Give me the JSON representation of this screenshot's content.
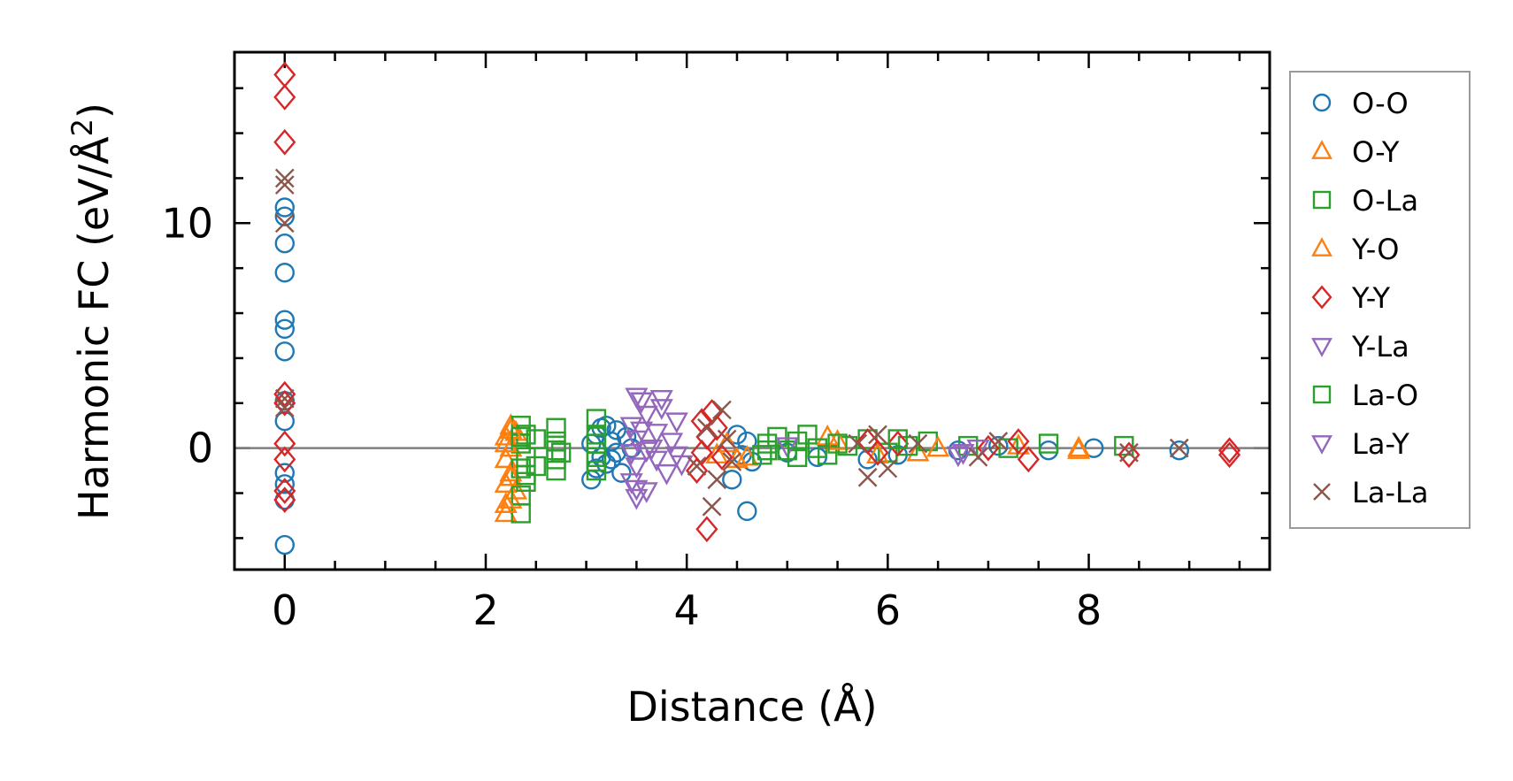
{
  "chart_data": {
    "type": "scatter",
    "title": "",
    "xlabel": "Distance (Å)",
    "ylabel_main": "Harmonic FC (eV/Å",
    "ylabel_sup": "2",
    "ylabel_close": ")",
    "xlim": [
      -0.5,
      9.8
    ],
    "ylim": [
      -5.4,
      17.6
    ],
    "xticks": [
      0,
      2,
      4,
      6,
      8
    ],
    "xtick_labels": [
      "0",
      "2",
      "4",
      "6",
      "8"
    ],
    "yticks": [
      0,
      10
    ],
    "ytick_labels": [
      "0",
      "10"
    ],
    "x_minor_step": 0.5,
    "y_minor_step": 2,
    "zero_line": true,
    "legend_position": "outside-right",
    "series": [
      {
        "name": "O-O",
        "marker": "circle",
        "color": "#1f77b4",
        "points": [
          [
            0,
            -4.3
          ],
          [
            0,
            -2.3
          ],
          [
            0,
            -1.6
          ],
          [
            0,
            -1.1
          ],
          [
            0,
            1.2
          ],
          [
            0,
            2.1
          ],
          [
            0,
            4.3
          ],
          [
            0,
            5.3
          ],
          [
            0,
            5.7
          ],
          [
            0,
            7.8
          ],
          [
            0,
            9.1
          ],
          [
            0,
            10.3
          ],
          [
            0,
            10.7
          ],
          [
            3.05,
            -1.4
          ],
          [
            3.1,
            -0.9
          ],
          [
            3.15,
            -0.4
          ],
          [
            3.05,
            0.2
          ],
          [
            3.1,
            0.6
          ],
          [
            3.15,
            0.9
          ],
          [
            3.2,
            -0.7
          ],
          [
            3.25,
            0.3
          ],
          [
            3.3,
            -0.2
          ],
          [
            3.3,
            0.8
          ],
          [
            3.35,
            -1.1
          ],
          [
            3.4,
            0.5
          ],
          [
            3.45,
            0
          ],
          [
            3.2,
            1.0
          ],
          [
            3.25,
            -0.5
          ],
          [
            4.45,
            -1.4
          ],
          [
            4.5,
            0.6
          ],
          [
            4.55,
            -0.3
          ],
          [
            4.6,
            -2.8
          ],
          [
            4.6,
            0.3
          ],
          [
            4.65,
            -0.6
          ],
          [
            5.0,
            -0.2
          ],
          [
            5.3,
            -0.4
          ],
          [
            5.8,
            -0.5
          ],
          [
            6.1,
            -0.3
          ],
          [
            6.7,
            -0.1
          ],
          [
            7.1,
            0.1
          ],
          [
            7.6,
            -0.1
          ],
          [
            8.05,
            0
          ],
          [
            8.9,
            -0.1
          ]
        ]
      },
      {
        "name": "O-Y",
        "marker": "triangle-up",
        "color": "#ff7f0e",
        "points": [
          [
            2.2,
            -2.9
          ],
          [
            2.25,
            -2.3
          ],
          [
            2.2,
            -1.6
          ],
          [
            2.25,
            -1.1
          ],
          [
            2.2,
            -0.5
          ],
          [
            2.25,
            0
          ],
          [
            2.2,
            0.5
          ],
          [
            2.25,
            1.0
          ],
          [
            2.3,
            -1.9
          ],
          [
            2.3,
            0.7
          ],
          [
            4.3,
            -0.3
          ],
          [
            4.4,
            0.2
          ],
          [
            4.6,
            -0.4
          ],
          [
            5.4,
            0.5
          ],
          [
            6.3,
            -0.2
          ],
          [
            7.3,
            0.1
          ],
          [
            7.9,
            0
          ]
        ]
      },
      {
        "name": "O-La",
        "marker": "square",
        "color": "#2ca02c",
        "points": [
          [
            2.35,
            -2.9
          ],
          [
            2.35,
            -2.1
          ],
          [
            2.4,
            -1.5
          ],
          [
            2.35,
            -0.9
          ],
          [
            2.4,
            -0.4
          ],
          [
            2.35,
            0.2
          ],
          [
            2.4,
            0.6
          ],
          [
            2.35,
            1.0
          ],
          [
            2.5,
            -0.8
          ],
          [
            2.5,
            0.4
          ],
          [
            2.7,
            -1.0
          ],
          [
            2.7,
            -0.5
          ],
          [
            2.7,
            0.3
          ],
          [
            2.7,
            0.9
          ],
          [
            2.75,
            -0.2
          ],
          [
            3.1,
            -1.0
          ],
          [
            3.1,
            -0.4
          ],
          [
            3.1,
            0.2
          ],
          [
            3.1,
            0.6
          ],
          [
            3.1,
            1.3
          ],
          [
            4.75,
            -0.3
          ],
          [
            4.8,
            0.2
          ],
          [
            4.9,
            0.5
          ],
          [
            5.0,
            -0.1
          ],
          [
            5.1,
            0.3
          ],
          [
            5.2,
            0.6
          ],
          [
            5.3,
            0
          ],
          [
            5.4,
            -0.3
          ],
          [
            5.6,
            0.1
          ],
          [
            5.8,
            0.4
          ],
          [
            6.0,
            -0.2
          ],
          [
            6.2,
            0.1
          ],
          [
            6.4,
            0.3
          ],
          [
            6.8,
            0.1
          ],
          [
            7.2,
            0
          ],
          [
            7.6,
            0.2
          ],
          [
            8.35,
            0.1
          ]
        ]
      },
      {
        "name": "Y-O",
        "marker": "triangle-up",
        "color": "#ff7f0e",
        "points": [
          [
            2.2,
            -2.5
          ],
          [
            2.25,
            -1.3
          ],
          [
            2.2,
            0.2
          ],
          [
            2.25,
            0.8
          ],
          [
            4.5,
            -0.5
          ],
          [
            5.5,
            0.3
          ],
          [
            5.9,
            -0.3
          ],
          [
            6.5,
            0
          ],
          [
            7.9,
            -0.1
          ]
        ]
      },
      {
        "name": "Y-Y",
        "marker": "diamond",
        "color": "#d62728",
        "points": [
          [
            0,
            16.6
          ],
          [
            0,
            15.6
          ],
          [
            0,
            13.6
          ],
          [
            0,
            2.4
          ],
          [
            0,
            2.0
          ],
          [
            0,
            0.2
          ],
          [
            0,
            -0.5
          ],
          [
            0,
            -1.9
          ],
          [
            0,
            -2.3
          ],
          [
            4.1,
            -1.0
          ],
          [
            4.15,
            -0.2
          ],
          [
            4.2,
            0.5
          ],
          [
            4.15,
            1.2
          ],
          [
            4.25,
            1.6
          ],
          [
            4.2,
            -3.6
          ],
          [
            4.3,
            0.9
          ],
          [
            4.35,
            -0.4
          ],
          [
            5.8,
            0.3
          ],
          [
            5.9,
            -0.2
          ],
          [
            6.1,
            0.2
          ],
          [
            7.0,
            0
          ],
          [
            7.4,
            -0.5
          ],
          [
            7.3,
            0.3
          ],
          [
            8.4,
            -0.3
          ],
          [
            9.4,
            -0.3
          ],
          [
            9.4,
            -0.1
          ]
        ]
      },
      {
        "name": "Y-La",
        "marker": "triangle-down",
        "color": "#9467bd",
        "points": [
          [
            3.5,
            -2.2
          ],
          [
            3.45,
            -1.5
          ],
          [
            3.5,
            -0.8
          ],
          [
            3.45,
            -0.2
          ],
          [
            3.5,
            0.4
          ],
          [
            3.45,
            1.0
          ],
          [
            3.5,
            2.3
          ],
          [
            3.55,
            2.1
          ],
          [
            3.6,
            -1.9
          ],
          [
            3.6,
            1.5
          ],
          [
            3.65,
            0
          ],
          [
            3.7,
            -0.5
          ],
          [
            3.7,
            0.7
          ],
          [
            3.75,
            2.2
          ],
          [
            3.8,
            -1.1
          ],
          [
            3.85,
            0.3
          ],
          [
            3.9,
            1.2
          ],
          [
            3.95,
            -0.7
          ],
          [
            5.0,
            0.1
          ],
          [
            6.7,
            -0.3
          ],
          [
            6.9,
            0
          ]
        ]
      },
      {
        "name": "La-O",
        "marker": "square",
        "color": "#2ca02c",
        "points": [
          [
            2.4,
            -1.2
          ],
          [
            2.35,
            0.5
          ],
          [
            2.7,
            -0.1
          ],
          [
            3.1,
            -0.6
          ],
          [
            4.8,
            -0.1
          ],
          [
            5.1,
            -0.4
          ],
          [
            5.5,
            0.2
          ],
          [
            6.1,
            0.4
          ]
        ]
      },
      {
        "name": "La-Y",
        "marker": "triangle-down",
        "color": "#9467bd",
        "points": [
          [
            3.5,
            -1.8
          ],
          [
            3.55,
            0.8
          ],
          [
            3.6,
            -0.1
          ],
          [
            3.75,
            1.8
          ],
          [
            3.9,
            -0.3
          ],
          [
            6.75,
            -0.2
          ]
        ]
      },
      {
        "name": "La-La",
        "marker": "x",
        "color": "#8c564b",
        "points": [
          [
            0,
            12.0
          ],
          [
            0,
            11.7
          ],
          [
            0,
            10.0
          ],
          [
            0,
            2.2
          ],
          [
            0,
            1.8
          ],
          [
            4.1,
            -0.8
          ],
          [
            4.25,
            -2.6
          ],
          [
            4.3,
            -1.4
          ],
          [
            4.35,
            1.7
          ],
          [
            4.4,
            0.4
          ],
          [
            4.45,
            -0.6
          ],
          [
            4.2,
            0.9
          ],
          [
            5.7,
            0.2
          ],
          [
            5.8,
            -1.3
          ],
          [
            5.9,
            0.6
          ],
          [
            6.0,
            -0.9
          ],
          [
            6.3,
            0.2
          ],
          [
            6.9,
            -0.4
          ],
          [
            7.1,
            0.3
          ],
          [
            8.4,
            -0.2
          ],
          [
            8.9,
            0
          ]
        ]
      }
    ]
  }
}
